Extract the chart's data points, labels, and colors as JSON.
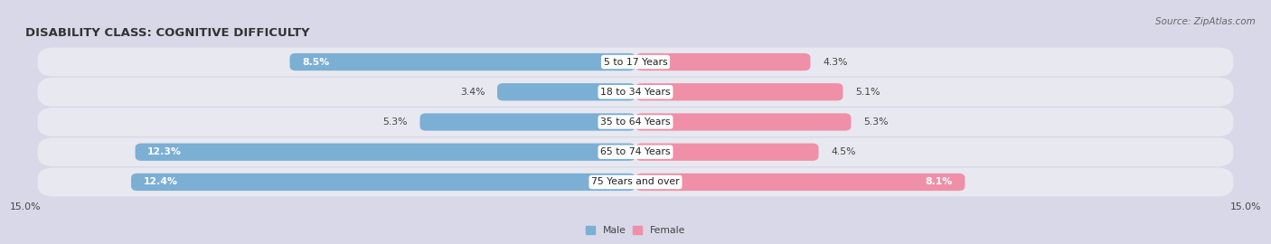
{
  "title": "DISABILITY CLASS: COGNITIVE DIFFICULTY",
  "source": "Source: ZipAtlas.com",
  "categories": [
    "5 to 17 Years",
    "18 to 34 Years",
    "35 to 64 Years",
    "65 to 74 Years",
    "75 Years and over"
  ],
  "male_values": [
    8.5,
    3.4,
    5.3,
    12.3,
    12.4
  ],
  "female_values": [
    4.3,
    5.1,
    5.3,
    4.5,
    8.1
  ],
  "xlim": 15.0,
  "male_color": "#7bafd4",
  "female_color": "#f08fa8",
  "row_bg_color": "#e8e8f0",
  "page_bg_color": "#d8d8e8",
  "male_label": "Male",
  "female_label": "Female",
  "title_fontsize": 9.5,
  "label_fontsize": 7.8,
  "tick_fontsize": 7.8,
  "source_fontsize": 7.5,
  "value_inside_threshold": 6.0
}
